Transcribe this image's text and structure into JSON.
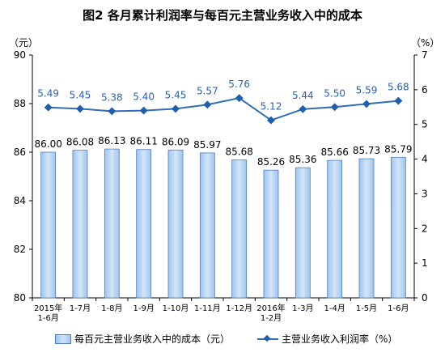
{
  "title": "图2  各月累计利润率与每百元主营业务收入中的成本",
  "left_unit": "（元）",
  "right_unit": "（%）",
  "chart_data": {
    "type": "bar+line",
    "title": "图2  各月累计利润率与每百元主营业务收入中的成本",
    "categories": [
      "2015年\n1-6月",
      "1-7月",
      "1-8月",
      "1-9月",
      "1-10月",
      "1-11月",
      "1-12月",
      "2016年\n1-2月",
      "1-3月",
      "1-4月",
      "1-5月",
      "1-6月"
    ],
    "series": [
      {
        "name": "每百元主营业务收入中的成本（元）",
        "type": "bar",
        "axis": "left",
        "values": [
          86.0,
          86.08,
          86.13,
          86.11,
          86.09,
          85.97,
          85.68,
          85.26,
          85.36,
          85.66,
          85.73,
          85.79
        ],
        "labels": [
          "86.00",
          "86.08",
          "86.13",
          "86.11",
          "86.09",
          "85.97",
          "85.68",
          "85.26",
          "85.36",
          "85.66",
          "85.73",
          "85.79"
        ]
      },
      {
        "name": "主营业务收入利润率（%）",
        "type": "line",
        "axis": "right",
        "values": [
          5.49,
          5.45,
          5.38,
          5.4,
          5.45,
          5.57,
          5.76,
          5.12,
          5.44,
          5.5,
          5.59,
          5.68
        ],
        "labels": [
          "5.49",
          "5.45",
          "5.38",
          "5.40",
          "5.45",
          "5.57",
          "5.76",
          "5.12",
          "5.44",
          "5.50",
          "5.59",
          "5.68"
        ]
      }
    ],
    "ylim_left": [
      80,
      90
    ],
    "yticks_left": [
      "80",
      "82",
      "84",
      "86",
      "88",
      "90"
    ],
    "ylim_right": [
      0,
      7
    ],
    "yticks_right": [
      "0",
      "1",
      "2",
      "3",
      "4",
      "5",
      "6",
      "7"
    ],
    "grid": false,
    "legend_position": "bottom"
  },
  "colors": {
    "bar_fill_edge": "#9ec5ef",
    "bar_fill_center": "#d3e5f8",
    "bar_stroke": "#4d7fc0",
    "line": "#2f6db5",
    "marker": "#1f5fae",
    "line_label": "#2a62ad",
    "axis": "#000000"
  }
}
